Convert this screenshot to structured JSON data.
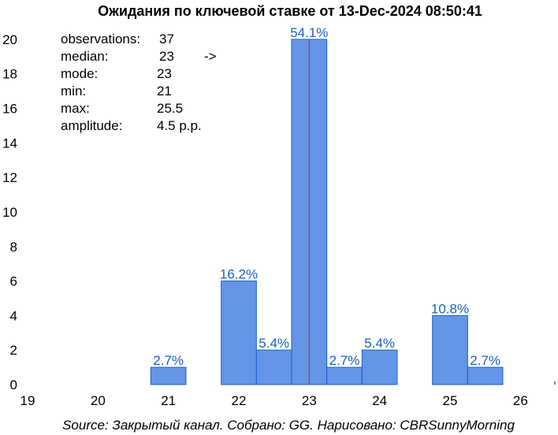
{
  "chart_data": {
    "type": "bar",
    "title": "Ожидания по ключевой ставке от 13-Dec-2024 08:50:41",
    "xlabel": "",
    "ylabel": "",
    "xlim": [
      19,
      26.5
    ],
    "ylim": [
      0,
      21
    ],
    "x_ticks": [
      "19",
      "20",
      "21",
      "22",
      "23",
      "24",
      "25",
      "26"
    ],
    "y_ticks": [
      "0",
      "2",
      "4",
      "6",
      "8",
      "10",
      "12",
      "14",
      "16",
      "18",
      "20"
    ],
    "bin_width": 0.5,
    "bars": [
      {
        "left": 20.75,
        "count": 1,
        "label": "2.7%"
      },
      {
        "left": 21.75,
        "count": 6,
        "label": "16.2%"
      },
      {
        "left": 22.25,
        "count": 2,
        "label": "5.4%"
      },
      {
        "left": 22.75,
        "count": 20,
        "label": "54.1%"
      },
      {
        "left": 23.25,
        "count": 1,
        "label": "2.7%"
      },
      {
        "left": 23.75,
        "count": 2,
        "label": "5.4%"
      },
      {
        "left": 24.75,
        "count": 4,
        "label": "10.8%"
      },
      {
        "left": 25.25,
        "count": 1,
        "label": "2.7%"
      }
    ],
    "median_line": 23,
    "stats": [
      {
        "label": "observations:",
        "value": "37",
        "highlight": false
      },
      {
        "label": "median:",
        "value": "23",
        "arrow": "->",
        "highlight": true
      },
      {
        "label": "mode:",
        "value": "23",
        "highlight": false
      },
      {
        "label": "min:",
        "value": "21",
        "highlight": false
      },
      {
        "label": "max:",
        "value": "25.5",
        "highlight": false
      },
      {
        "label": "amplitude:",
        "value": "4.5 p.p.",
        "highlight": false
      }
    ],
    "source": "Source: Закрытый канал. Собрано: GG. Нарисовано: CBRSunnyMorning",
    "colors": {
      "bar_fill": "#6495e6",
      "bar_stroke": "#1a5fc8",
      "label": "#1a5fc8",
      "median": "#e31a1c",
      "highlight": "#e31a1c"
    }
  }
}
